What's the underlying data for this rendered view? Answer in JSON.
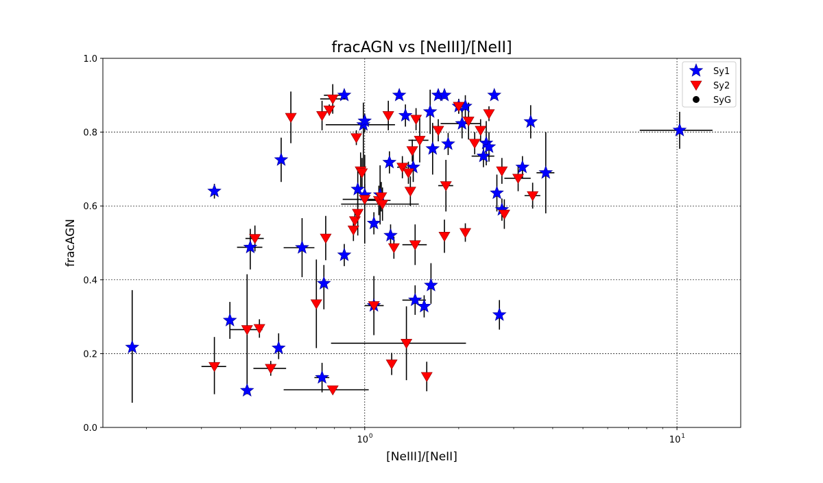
{
  "chart_data": {
    "type": "scatter",
    "title": "fracAGN vs [NeIII]/[NeII]",
    "xlabel": "[NeIII]/[NeII]",
    "ylabel": "fracAGN",
    "xscale": "log",
    "xlim": [
      0.145,
      16
    ],
    "ylim": [
      0.0,
      1.0
    ],
    "grid": "on",
    "legend_position": "top-right",
    "yticks": [
      {
        "value": 0.0,
        "label": "0.0"
      },
      {
        "value": 0.2,
        "label": "0.2"
      },
      {
        "value": 0.4,
        "label": "0.4"
      },
      {
        "value": 0.6,
        "label": "0.6"
      },
      {
        "value": 0.8,
        "label": "0.8"
      },
      {
        "value": 1.0,
        "label": "1.0"
      }
    ],
    "xticks": [
      {
        "value": 1,
        "label": "10",
        "sup": "0"
      },
      {
        "value": 10,
        "label": "10",
        "sup": "1"
      }
    ],
    "series": [
      {
        "name": "Sy1",
        "marker": "star",
        "color": "#0000ff",
        "points": [
          {
            "x": 0.18,
            "y": 0.217,
            "yerr": [
              0.15,
              0.155
            ]
          },
          {
            "x": 0.33,
            "y": 0.64,
            "yerr": [
              0.02,
              0.02
            ]
          },
          {
            "x": 0.37,
            "y": 0.29,
            "yerr": [
              0.05,
              0.05
            ]
          },
          {
            "x": 0.42,
            "y": 0.1,
            "yerr": [
              0.01,
              0.01
            ]
          },
          {
            "x": 0.43,
            "y": 0.488,
            "yerr": [
              0.06,
              0.05
            ],
            "xerr": [
              0.04,
              0.04
            ]
          },
          {
            "x": 0.53,
            "y": 0.215,
            "yerr": [
              0.03,
              0.04
            ]
          },
          {
            "x": 0.54,
            "y": 0.725,
            "yerr": [
              0.06,
              0.06
            ]
          },
          {
            "x": 0.63,
            "y": 0.487,
            "yerr": [
              0.08,
              0.08
            ],
            "xerr": [
              0.08,
              0.06
            ]
          },
          {
            "x": 0.73,
            "y": 0.135,
            "yerr": [
              0.04,
              0.04
            ],
            "xerr": [
              0.04,
              0.04
            ]
          },
          {
            "x": 0.74,
            "y": 0.39,
            "yerr": [
              0.07,
              0.05
            ]
          },
          {
            "x": 0.86,
            "y": 0.467,
            "yerr": [
              0.03,
              0.03
            ]
          },
          {
            "x": 0.86,
            "y": 0.9,
            "yerr": [
              0.01,
              0.01
            ],
            "xerr": [
              0.12,
              0.01
            ]
          },
          {
            "x": 0.95,
            "y": 0.645,
            "yerr": [
              0.05,
              0.05
            ]
          },
          {
            "x": 0.99,
            "y": 0.82,
            "yerr": [
              0.12,
              0.06
            ],
            "xerr": [
              0.24,
              0.26
            ]
          },
          {
            "x": 1.0,
            "y": 0.83,
            "yerr": [
              0.03,
              0.02
            ]
          },
          {
            "x": 1.0,
            "y": 0.63,
            "yerr": [
              0.03,
              0.03
            ]
          },
          {
            "x": 1.07,
            "y": 0.33,
            "yerr": [
              0.08,
              0.08
            ],
            "xerr": [
              0.07,
              0.08
            ]
          },
          {
            "x": 1.07,
            "y": 0.553,
            "yerr": [
              0.03,
              0.03
            ]
          },
          {
            "x": 1.12,
            "y": 0.63,
            "yerr": [
              0.08,
              0.08
            ]
          },
          {
            "x": 1.2,
            "y": 0.718,
            "yerr": [
              0.03,
              0.03
            ]
          },
          {
            "x": 1.21,
            "y": 0.52,
            "yerr": [
              0.03,
              0.03
            ]
          },
          {
            "x": 1.29,
            "y": 0.9,
            "yerr": [
              0.01,
              0.01
            ]
          },
          {
            "x": 1.35,
            "y": 0.845,
            "yerr": [
              0.03,
              0.03
            ]
          },
          {
            "x": 1.43,
            "y": 0.705,
            "yerr": [
              0.04,
              0.04
            ]
          },
          {
            "x": 1.45,
            "y": 0.345,
            "yerr": [
              0.04,
              0.04
            ],
            "xerr": [
              0.13,
              0.12
            ]
          },
          {
            "x": 1.55,
            "y": 0.328,
            "yerr": [
              0.03,
              0.03
            ]
          },
          {
            "x": 1.62,
            "y": 0.855,
            "yerr": [
              0.06,
              0.06
            ]
          },
          {
            "x": 1.63,
            "y": 0.385,
            "yerr": [
              0.05,
              0.06
            ]
          },
          {
            "x": 1.65,
            "y": 0.755,
            "yerr": [
              0.07,
              0.07
            ]
          },
          {
            "x": 1.72,
            "y": 0.9,
            "yerr": [
              0.01,
              0.01
            ]
          },
          {
            "x": 1.8,
            "y": 0.9,
            "yerr": [
              0.01,
              0.01
            ]
          },
          {
            "x": 1.85,
            "y": 0.768,
            "yerr": [
              0.03,
              0.03
            ]
          },
          {
            "x": 2.0,
            "y": 0.87,
            "yerr": [
              0.02,
              0.02
            ]
          },
          {
            "x": 2.05,
            "y": 0.823,
            "yerr": [
              0.04,
              0.04
            ],
            "xerr": [
              0.3,
              0.3
            ]
          },
          {
            "x": 2.1,
            "y": 0.87,
            "yerr": [
              0.03,
              0.03
            ]
          },
          {
            "x": 2.4,
            "y": 0.735,
            "yerr": [
              0.03,
              0.03
            ],
            "xerr": [
              0.2,
              0.2
            ]
          },
          {
            "x": 2.45,
            "y": 0.77,
            "yerr": [
              0.06,
              0.06
            ]
          },
          {
            "x": 2.5,
            "y": 0.76,
            "yerr": [
              0.04,
              0.04
            ]
          },
          {
            "x": 2.6,
            "y": 0.9,
            "yerr": [
              0.01,
              0.01
            ]
          },
          {
            "x": 2.65,
            "y": 0.635,
            "yerr": [
              0.05,
              0.05
            ]
          },
          {
            "x": 2.75,
            "y": 0.59,
            "yerr": [
              0.03,
              0.03
            ]
          },
          {
            "x": 2.7,
            "y": 0.305,
            "yerr": [
              0.04,
              0.04
            ]
          },
          {
            "x": 3.2,
            "y": 0.705,
            "yerr": [
              0.03,
              0.03
            ]
          },
          {
            "x": 3.4,
            "y": 0.828,
            "yerr": [
              0.045,
              0.045
            ]
          },
          {
            "x": 3.8,
            "y": 0.69,
            "yerr": [
              0.11,
              0.11
            ],
            "xerr": [
              0.25,
              0.25
            ]
          },
          {
            "x": 10.2,
            "y": 0.805,
            "yerr": [
              0.05,
              0.05
            ],
            "xerr": [
              2.6,
              2.8
            ]
          }
        ]
      },
      {
        "name": "Sy2",
        "marker": "triangle_down",
        "color": "#ff0000",
        "points": [
          {
            "x": 0.33,
            "y": 0.165,
            "yerr": [
              0.075,
              0.08
            ],
            "xerr": [
              0.03,
              0.03
            ]
          },
          {
            "x": 0.42,
            "y": 0.265,
            "yerr": [
              0.15,
              0.15
            ],
            "xerr": [
              0.05,
              0.05
            ]
          },
          {
            "x": 0.46,
            "y": 0.268,
            "yerr": [
              0.025,
              0.025
            ]
          },
          {
            "x": 0.445,
            "y": 0.512,
            "yerr": [
              0.035,
              0.035
            ],
            "xerr": [
              0.03,
              0.03
            ]
          },
          {
            "x": 0.5,
            "y": 0.16,
            "yerr": [
              0.02,
              0.02
            ],
            "xerr": [
              0.06,
              0.06
            ]
          },
          {
            "x": 0.58,
            "y": 0.84,
            "yerr": [
              0.07,
              0.07
            ]
          },
          {
            "x": 0.7,
            "y": 0.335,
            "yerr": [
              0.12,
              0.12
            ]
          },
          {
            "x": 0.73,
            "y": 0.845,
            "yerr": [
              0.04,
              0.04
            ]
          },
          {
            "x": 0.75,
            "y": 0.513,
            "yerr": [
              0.06,
              0.06
            ]
          },
          {
            "x": 0.77,
            "y": 0.86,
            "yerr": [
              0.015,
              0.015
            ]
          },
          {
            "x": 0.79,
            "y": 0.102,
            "yerr": [
              0.005,
              0.005
            ],
            "xerr": [
              0.24,
              0.24
            ]
          },
          {
            "x": 0.79,
            "y": 0.89,
            "yerr": [
              0.04,
              0.04
            ],
            "xerr": [
              0.07,
              0.08
            ]
          },
          {
            "x": 0.92,
            "y": 0.535,
            "yerr": [
              0.03,
              0.03
            ]
          },
          {
            "x": 0.93,
            "y": 0.56,
            "yerr": [
              0.03,
              0.03
            ]
          },
          {
            "x": 0.94,
            "y": 0.785,
            "yerr": [
              0.02,
              0.02
            ]
          },
          {
            "x": 0.95,
            "y": 0.58,
            "yerr": [
              0.06,
              0.06
            ]
          },
          {
            "x": 0.97,
            "y": 0.695,
            "yerr": [
              0.05,
              0.05
            ]
          },
          {
            "x": 0.98,
            "y": 0.69,
            "yerr": [
              0.04,
              0.04
            ]
          },
          {
            "x": 1.0,
            "y": 0.618,
            "yerr": [
              0.12,
              0.12
            ],
            "xerr": [
              0.15,
              0.15
            ]
          },
          {
            "x": 1.07,
            "y": 0.33,
            "yerr": [
              0.02,
              0.02
            ]
          },
          {
            "x": 1.11,
            "y": 0.615,
            "yerr": [
              0.04,
              0.04
            ],
            "xerr": [
              0.1,
              0.1
            ]
          },
          {
            "x": 1.13,
            "y": 0.625,
            "yerr": [
              0.04,
              0.04
            ]
          },
          {
            "x": 1.14,
            "y": 0.605,
            "yerr": [
              0.045,
              0.045
            ],
            "xerr": [
              0.3,
              0.35
            ]
          },
          {
            "x": 1.19,
            "y": 0.845,
            "yerr": [
              0.04,
              0.04
            ]
          },
          {
            "x": 1.22,
            "y": 0.172,
            "yerr": [
              0.03,
              0.03
            ]
          },
          {
            "x": 1.24,
            "y": 0.487,
            "yerr": [
              0.03,
              0.03
            ]
          },
          {
            "x": 1.32,
            "y": 0.705,
            "yerr": [
              0.03,
              0.03
            ],
            "xerr": [
              0.05,
              0.05
            ]
          },
          {
            "x": 1.36,
            "y": 0.228,
            "yerr": [
              0.1,
              0.1
            ],
            "xerr": [
              0.58,
              0.75
            ]
          },
          {
            "x": 1.38,
            "y": 0.69,
            "yerr": [
              0.03,
              0.03
            ]
          },
          {
            "x": 1.4,
            "y": 0.64,
            "yerr": [
              0.04,
              0.04
            ]
          },
          {
            "x": 1.42,
            "y": 0.75,
            "yerr": [
              0.03,
              0.03
            ]
          },
          {
            "x": 1.45,
            "y": 0.495,
            "yerr": [
              0.055,
              0.055
            ],
            "xerr": [
              0.13,
              0.13
            ]
          },
          {
            "x": 1.46,
            "y": 0.835,
            "yerr": [
              0.03,
              0.03
            ]
          },
          {
            "x": 1.5,
            "y": 0.778,
            "yerr": [
              0.06,
              0.06
            ],
            "xerr": [
              0.12,
              0.1
            ]
          },
          {
            "x": 1.58,
            "y": 0.138,
            "yerr": [
              0.04,
              0.04
            ]
          },
          {
            "x": 1.72,
            "y": 0.805,
            "yerr": [
              0.03,
              0.03
            ]
          },
          {
            "x": 1.8,
            "y": 0.518,
            "yerr": [
              0.045,
              0.045
            ]
          },
          {
            "x": 1.82,
            "y": 0.655,
            "yerr": [
              0.07,
              0.07
            ],
            "xerr": [
              0.1,
              0.1
            ]
          },
          {
            "x": 2.0,
            "y": 0.87,
            "yerr": [
              0.02,
              0.02
            ]
          },
          {
            "x": 2.1,
            "y": 0.528,
            "yerr": [
              0.025,
              0.025
            ]
          },
          {
            "x": 2.15,
            "y": 0.83,
            "yerr": [
              0.05,
              0.05
            ]
          },
          {
            "x": 2.25,
            "y": 0.77,
            "yerr": [
              0.03,
              0.03
            ]
          },
          {
            "x": 2.35,
            "y": 0.805,
            "yerr": [
              0.03,
              0.03
            ]
          },
          {
            "x": 2.5,
            "y": 0.85,
            "yerr": [
              0.02,
              0.02
            ]
          },
          {
            "x": 2.75,
            "y": 0.695,
            "yerr": [
              0.035,
              0.035
            ]
          },
          {
            "x": 2.8,
            "y": 0.578,
            "yerr": [
              0.04,
              0.04
            ]
          },
          {
            "x": 3.1,
            "y": 0.675,
            "yerr": [
              0.035,
              0.035
            ],
            "xerr": [
              0.3,
              0.3
            ]
          },
          {
            "x": 3.45,
            "y": 0.628,
            "yerr": [
              0.035,
              0.035
            ],
            "xerr": [
              0.2,
              0.2
            ]
          }
        ]
      },
      {
        "name": "SyG",
        "marker": "circle",
        "color": "#000000",
        "points": []
      }
    ]
  }
}
